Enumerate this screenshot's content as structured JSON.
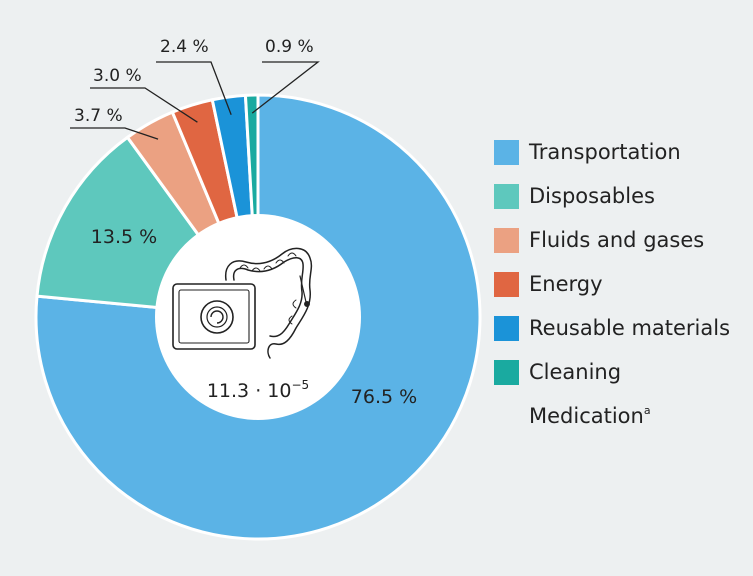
{
  "chart_data": {
    "type": "donut",
    "series": [
      {
        "name": "Transportation",
        "value": 76.5,
        "label": "76.5 %",
        "color": "#5bb3e6"
      },
      {
        "name": "Disposables",
        "value": 13.5,
        "label": "13.5 %",
        "color": "#5ec8bd"
      },
      {
        "name": "Fluids and gases",
        "value": 3.7,
        "label": "3.7 %",
        "color": "#eba182"
      },
      {
        "name": "Energy",
        "value": 3.0,
        "label": "3.0 %",
        "color": "#e06642"
      },
      {
        "name": "Reusable materials",
        "value": 2.4,
        "label": "2.4 %",
        "color": "#1b93d8"
      },
      {
        "name": "Cleaning",
        "value": 0.9,
        "label": "0.9 %",
        "color": "#1aaaa0"
      }
    ],
    "center_label": "11.3 · 10",
    "center_label_exponent": "−5",
    "legend_extra": {
      "name": "Medication",
      "footnote": "a"
    },
    "legend_position": "right"
  },
  "icons": [
    "endoscopy-monitor-icon",
    "colon-icon"
  ]
}
